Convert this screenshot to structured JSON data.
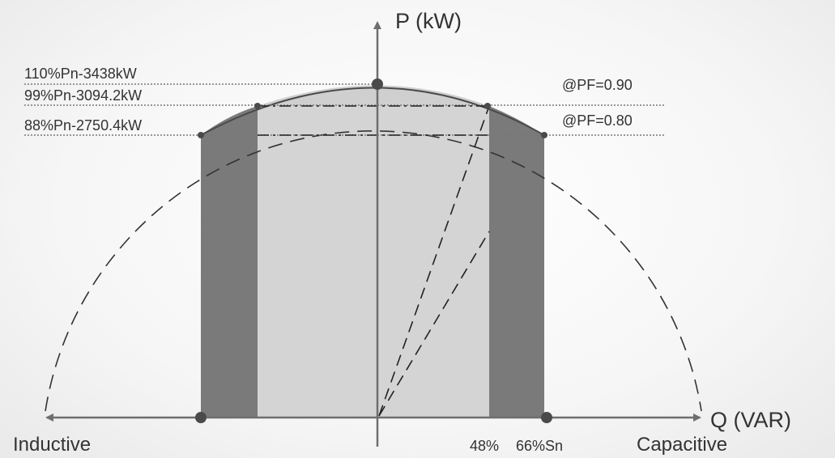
{
  "axes": {
    "p_label": "P (kW)",
    "q_label": "Q (VAR)",
    "inductive_label": "Inductive",
    "capacitive_label": "Capacitive"
  },
  "levels": {
    "p110": "110%Pn-3438kW",
    "p99": "99%Pn-3094.2kW",
    "p88": "88%Pn-2750.4kW"
  },
  "power_factors": {
    "pf090": "@PF=0.90",
    "pf080": "@PF=0.80"
  },
  "q_ticks": {
    "q48": "48%",
    "q66": "66%Sn"
  },
  "colors": {
    "dark_band": "#7a7a7a",
    "light_band": "#d4d4d4",
    "cap_fill": "#c9c9c9",
    "axis": "#6e6e6e",
    "point": "#4a4a4a"
  }
}
